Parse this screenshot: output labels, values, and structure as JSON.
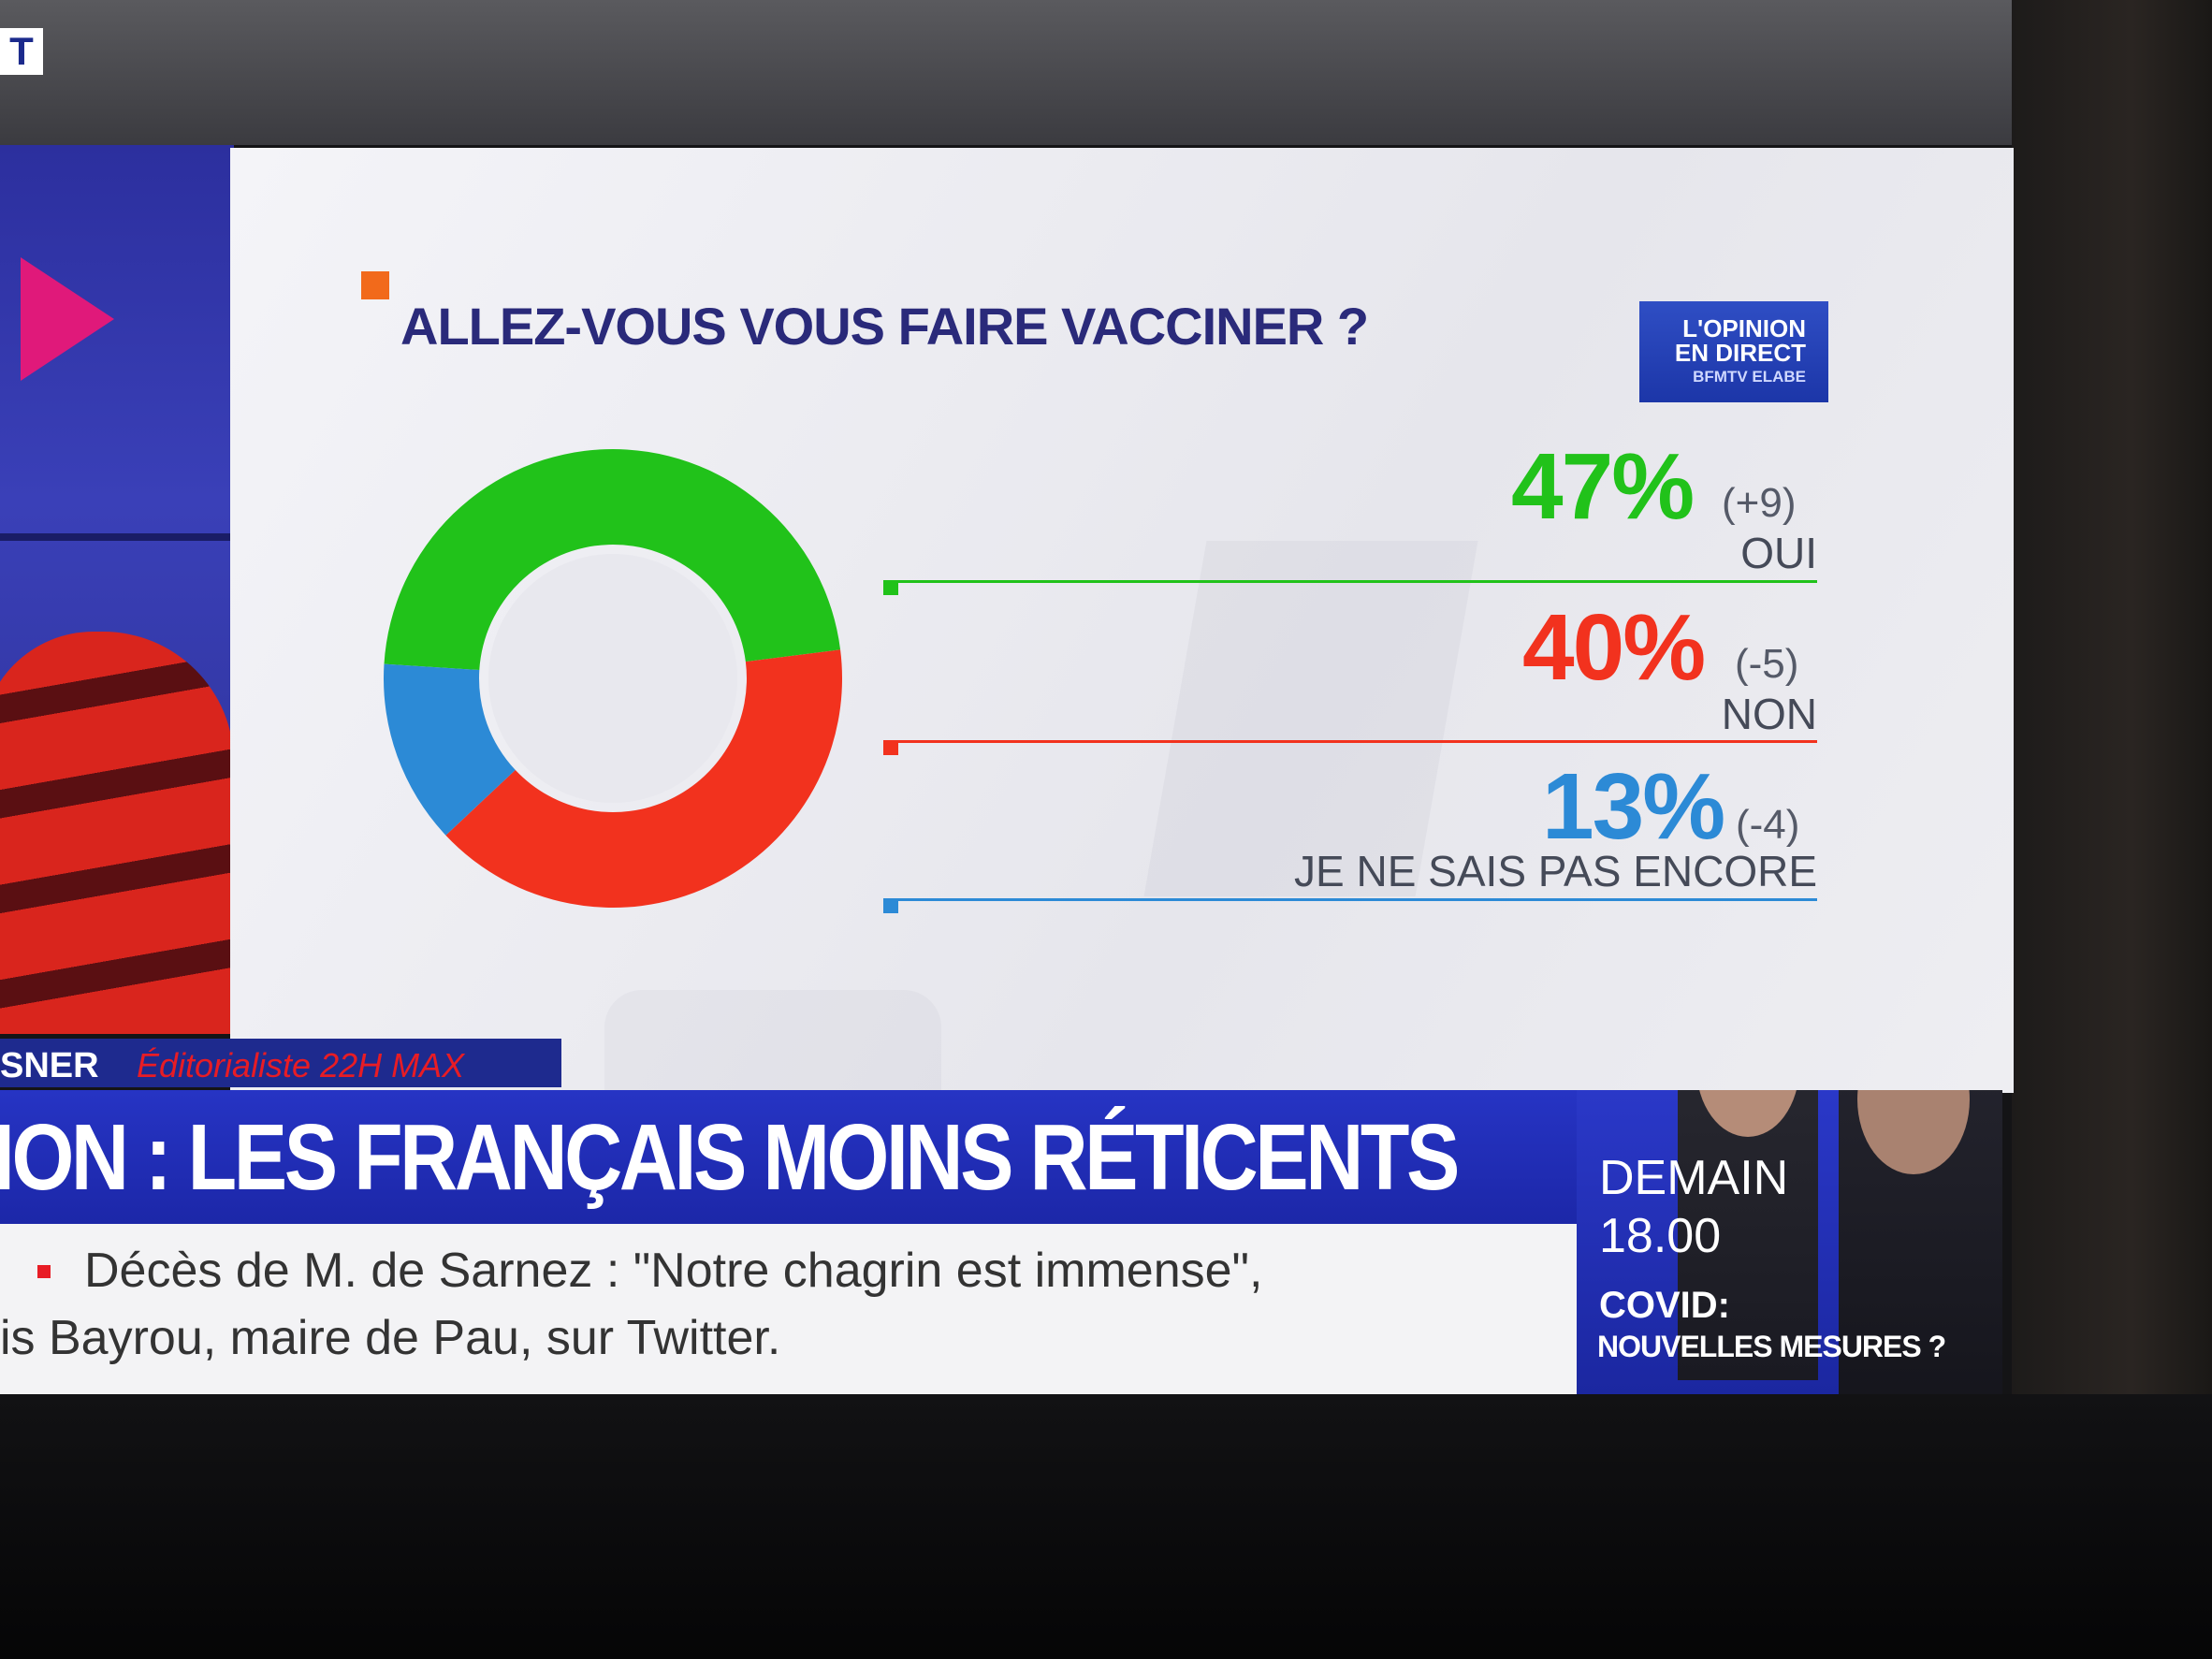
{
  "channel_logo": "T",
  "chart_data": {
    "type": "pie",
    "title": "ALLEZ-VOUS VOUS FAIRE VACCINER ?",
    "slices": [
      {
        "label": "OUI",
        "value": 47,
        "value_text": "47%",
        "change": "(+9)",
        "color": "#21c21a"
      },
      {
        "label": "NON",
        "value": 40,
        "value_text": "40%",
        "change": "(-5)",
        "color": "#f2321e"
      },
      {
        "label": "JE NE SAIS PAS ENCORE",
        "value": 13,
        "value_text": "13%",
        "change": "(-4)",
        "color": "#2c8ad6"
      }
    ]
  },
  "badge": {
    "line1": "L'OPINION",
    "line2": "EN DIRECT",
    "line3": "BFMTV ELABE"
  },
  "lower_third": {
    "name": "SNER",
    "role": "Éditorialiste 22H MAX",
    "headline": "ION : LES FRANÇAIS MOINS RÉTICENTS",
    "ticker_line1": "Décès de M. de Sarnez : \"Notre chagrin est immense\",",
    "ticker_line2": "is Bayrou, maire de Pau, sur Twitter."
  },
  "promo": {
    "when": "DEMAIN",
    "time": "18.00",
    "topic": "COVID:",
    "subtitle": "NOUVELLES MESURES ?"
  }
}
